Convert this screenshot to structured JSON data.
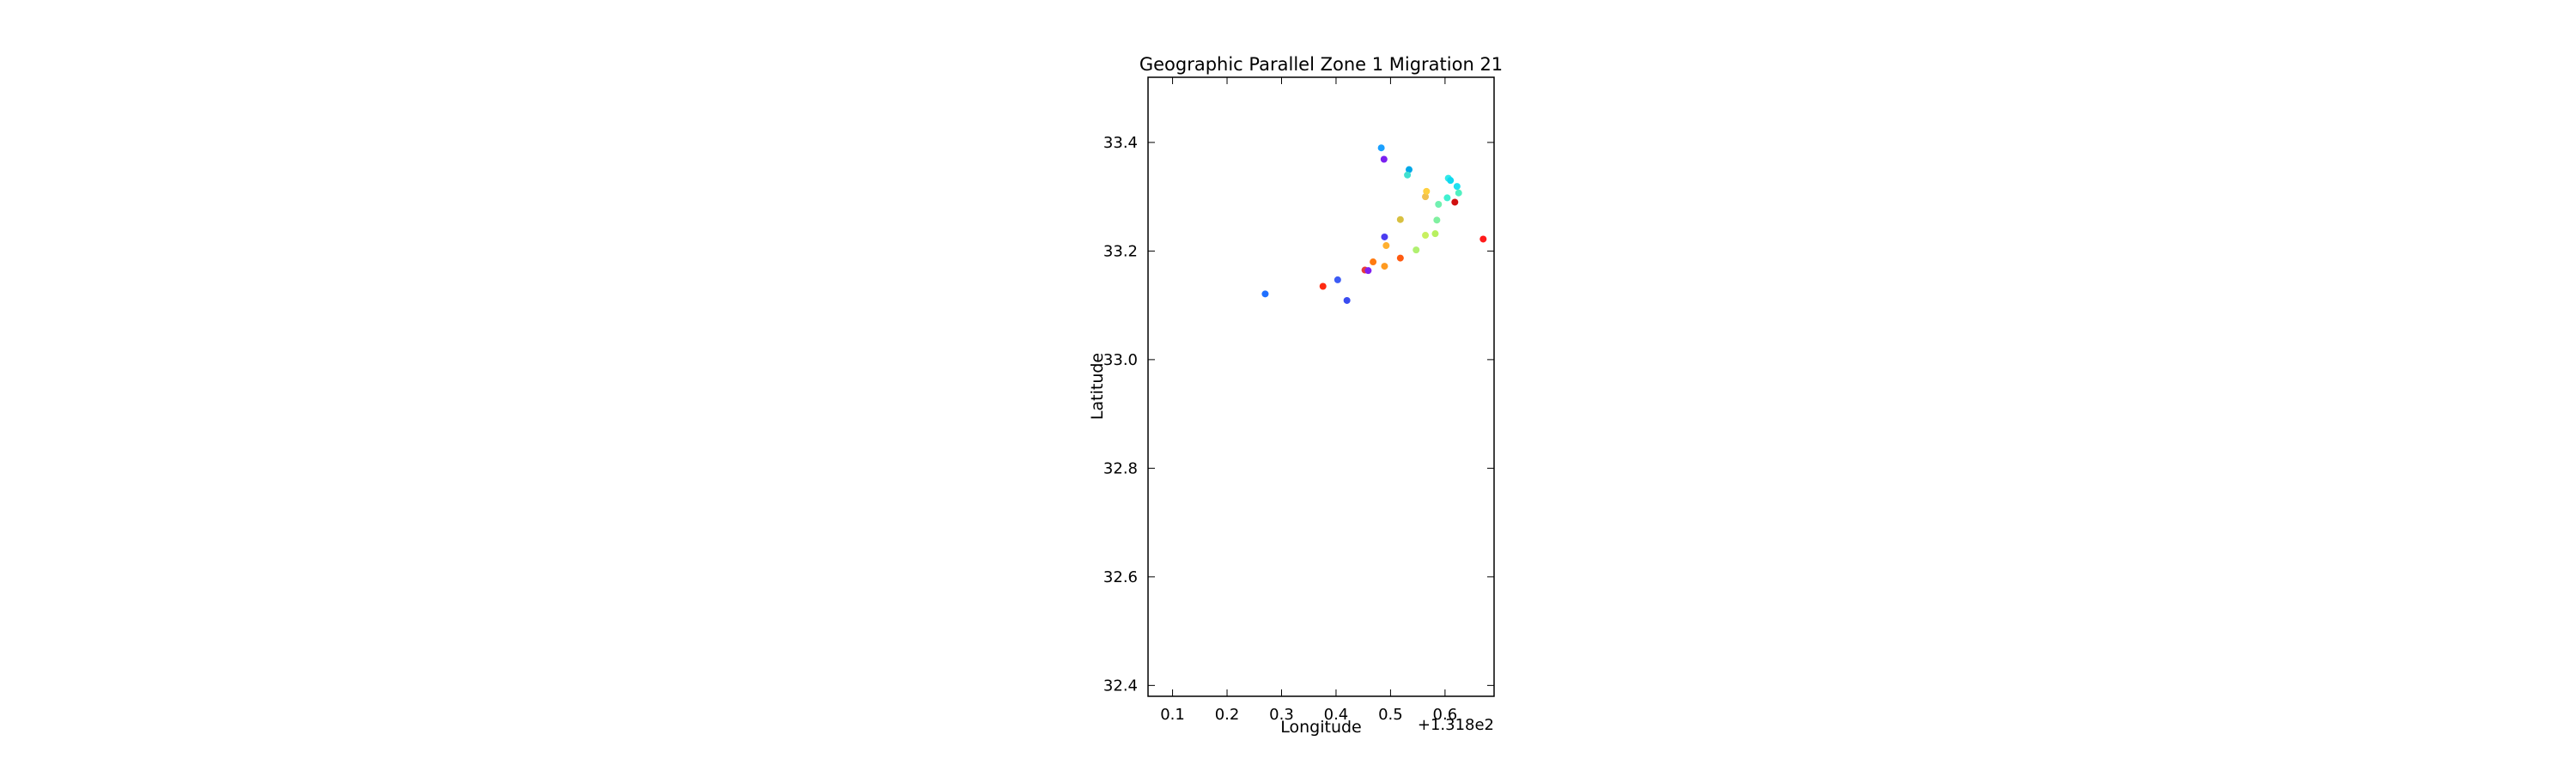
{
  "chart_data": {
    "type": "scatter",
    "title": "Geographic Parallel Zone 1 Migration 21",
    "xlabel": "Longitude",
    "ylabel": "Latitude",
    "x_offset_label": "+1.318e2",
    "x_axis_offset": 131.8,
    "xlim": [
      131.855,
      132.49
    ],
    "ylim": [
      32.38,
      33.52
    ],
    "xticks": [
      0.1,
      0.2,
      0.3,
      0.4,
      0.5,
      0.6
    ],
    "xtick_labels": [
      "0.1",
      "0.2",
      "0.3",
      "0.4",
      "0.5",
      "0.6"
    ],
    "yticks": [
      32.4,
      32.6,
      32.8,
      33.0,
      33.2,
      33.4
    ],
    "ytick_labels": [
      "32.4",
      "32.6",
      "32.8",
      "33.0",
      "33.2",
      "33.4"
    ],
    "grid": false,
    "legend": "none",
    "points": [
      {
        "x": 132.07,
        "y": 33.121,
        "color": "#1f6fff"
      },
      {
        "x": 132.176,
        "y": 33.135,
        "color": "#ff2a10"
      },
      {
        "x": 132.203,
        "y": 33.147,
        "color": "#3d5cf5"
      },
      {
        "x": 132.22,
        "y": 33.109,
        "color": "#3a4cf0"
      },
      {
        "x": 132.253,
        "y": 33.165,
        "color": "#e83a3a"
      },
      {
        "x": 132.259,
        "y": 33.164,
        "color": "#8020f0"
      },
      {
        "x": 132.268,
        "y": 33.18,
        "color": "#ff7a10"
      },
      {
        "x": 132.289,
        "y": 33.226,
        "color": "#4b3cf0"
      },
      {
        "x": 132.289,
        "y": 33.172,
        "color": "#ff9a20"
      },
      {
        "x": 132.292,
        "y": 33.21,
        "color": "#ffb030"
      },
      {
        "x": 132.318,
        "y": 33.187,
        "color": "#ff5a10"
      },
      {
        "x": 132.318,
        "y": 33.258,
        "color": "#d8c040"
      },
      {
        "x": 132.283,
        "y": 33.39,
        "color": "#1aa0ff"
      },
      {
        "x": 132.288,
        "y": 33.369,
        "color": "#7a20f0"
      },
      {
        "x": 132.334,
        "y": 33.35,
        "color": "#00a8e8"
      },
      {
        "x": 132.331,
        "y": 33.34,
        "color": "#40e0d0"
      },
      {
        "x": 132.347,
        "y": 33.202,
        "color": "#b0f070"
      },
      {
        "x": 132.364,
        "y": 33.229,
        "color": "#c8f060"
      },
      {
        "x": 132.364,
        "y": 33.3,
        "color": "#f0c050"
      },
      {
        "x": 132.366,
        "y": 33.31,
        "color": "#ffd040"
      },
      {
        "x": 132.382,
        "y": 33.232,
        "color": "#b8f060"
      },
      {
        "x": 132.385,
        "y": 33.257,
        "color": "#80f0a0"
      },
      {
        "x": 132.388,
        "y": 33.286,
        "color": "#70f0b0"
      },
      {
        "x": 132.406,
        "y": 33.334,
        "color": "#30e8e8"
      },
      {
        "x": 132.41,
        "y": 33.33,
        "color": "#10d8f0"
      },
      {
        "x": 132.404,
        "y": 33.298,
        "color": "#40f0d0"
      },
      {
        "x": 132.422,
        "y": 33.319,
        "color": "#20e0f0"
      },
      {
        "x": 132.425,
        "y": 33.307,
        "color": "#50f0c0"
      },
      {
        "x": 132.418,
        "y": 33.29,
        "color": "#d01010"
      },
      {
        "x": 132.47,
        "y": 33.222,
        "color": "#ff1a1a"
      }
    ]
  }
}
